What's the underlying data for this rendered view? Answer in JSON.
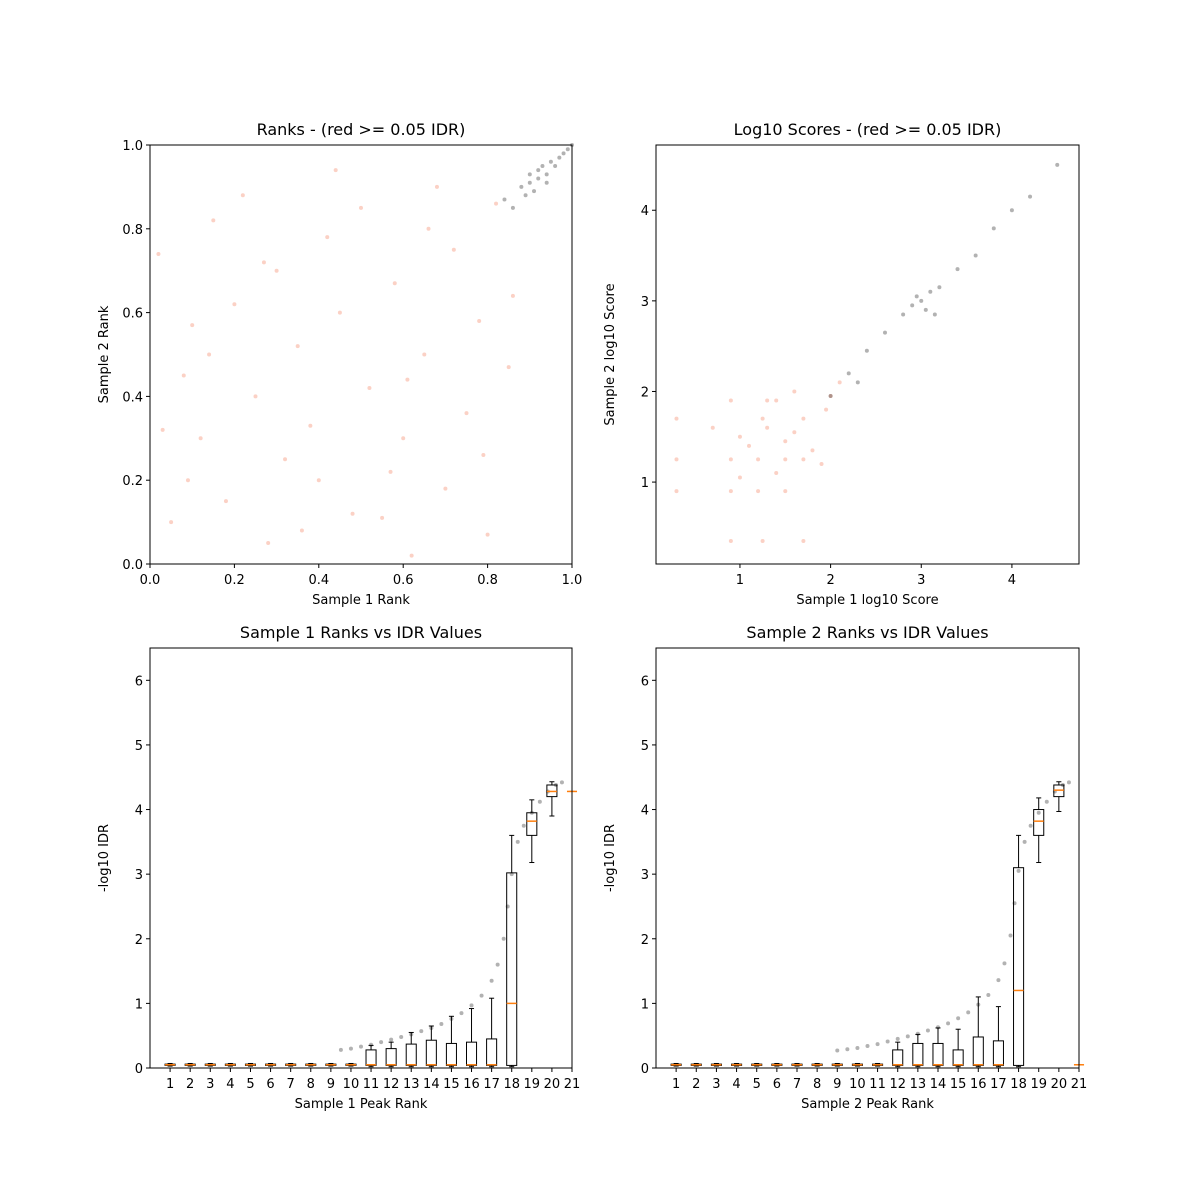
{
  "chart_data": [
    {
      "type": "scatter",
      "title": "Ranks - (red >= 0.05 IDR)",
      "xlabel": "Sample 1 Rank",
      "ylabel": "Sample 2 Rank",
      "xlim": [
        0,
        1
      ],
      "ylim": [
        0,
        1
      ],
      "xticks": [
        {
          "value": 0,
          "label": "0.0"
        },
        {
          "value": 0.2,
          "label": "0.2"
        },
        {
          "value": 0.4,
          "label": "0.4"
        },
        {
          "value": 0.6,
          "label": "0.6"
        },
        {
          "value": 0.8,
          "label": "0.8"
        },
        {
          "value": 1,
          "label": "1.0"
        }
      ],
      "yticks": [
        {
          "value": 0,
          "label": "0.0"
        },
        {
          "value": 0.2,
          "label": "0.2"
        },
        {
          "value": 0.4,
          "label": "0.4"
        },
        {
          "value": 0.6,
          "label": "0.6"
        },
        {
          "value": 0.8,
          "label": "0.8"
        },
        {
          "value": 1,
          "label": "1.0"
        }
      ],
      "series": [
        {
          "color": "#f47a5a",
          "x": [
            0.02,
            0.05,
            0.08,
            0.1,
            0.12,
            0.15,
            0.18,
            0.2,
            0.22,
            0.25,
            0.28,
            0.3,
            0.32,
            0.35,
            0.38,
            0.4,
            0.42,
            0.45,
            0.48,
            0.5,
            0.52,
            0.55,
            0.58,
            0.6,
            0.62,
            0.65,
            0.68,
            0.7,
            0.72,
            0.75,
            0.78,
            0.8,
            0.82,
            0.85,
            0.03,
            0.14,
            0.27,
            0.44,
            0.57,
            0.66,
            0.79,
            0.86,
            0.09,
            0.36,
            0.61
          ],
          "values": [
            0.74,
            0.1,
            0.45,
            0.57,
            0.3,
            0.82,
            0.15,
            0.62,
            0.88,
            0.4,
            0.05,
            0.7,
            0.25,
            0.52,
            0.33,
            0.2,
            0.78,
            0.6,
            0.12,
            0.85,
            0.42,
            0.11,
            0.67,
            0.3,
            0.02,
            0.5,
            0.9,
            0.18,
            0.75,
            0.36,
            0.58,
            0.07,
            0.86,
            0.47,
            0.32,
            0.5,
            0.72,
            0.94,
            0.22,
            0.8,
            0.26,
            0.64,
            0.2,
            0.08,
            0.44
          ]
        },
        {
          "color": "#000000",
          "x": [
            0.84,
            0.86,
            0.88,
            0.89,
            0.9,
            0.91,
            0.92,
            0.93,
            0.94,
            0.95,
            0.96,
            0.97,
            0.98,
            0.99,
            1.0,
            0.9,
            0.92,
            0.94
          ],
          "values": [
            0.87,
            0.85,
            0.9,
            0.88,
            0.93,
            0.89,
            0.92,
            0.95,
            0.91,
            0.96,
            0.95,
            0.97,
            0.98,
            0.99,
            1.0,
            0.91,
            0.94,
            0.93
          ]
        }
      ]
    },
    {
      "type": "scatter",
      "title": "Log10 Scores - (red >= 0.05 IDR)",
      "xlabel": "Sample 1 log10 Score",
      "ylabel": "Sample 2 log10 Score",
      "xlim": [
        0.074,
        4.74
      ],
      "ylim": [
        0.096,
        4.72
      ],
      "xticks": [
        1,
        2,
        3,
        4
      ],
      "yticks": [
        1,
        2,
        3,
        4
      ],
      "series": [
        {
          "color": "#f47a5a",
          "x": [
            0.3,
            0.3,
            0.3,
            0.9,
            0.9,
            0.9,
            1.0,
            1.1,
            1.2,
            1.25,
            1.25,
            1.3,
            1.4,
            1.5,
            1.5,
            1.6,
            1.7,
            1.7,
            1.8,
            1.9,
            1.95,
            2.0,
            2.1,
            1.2,
            1.5,
            0.9,
            1.4,
            1.7,
            1.0,
            1.3,
            0.7,
            1.6
          ],
          "values": [
            1.25,
            1.7,
            0.9,
            1.9,
            1.25,
            0.9,
            1.5,
            1.4,
            1.25,
            1.7,
            0.35,
            1.6,
            1.9,
            1.25,
            0.9,
            1.55,
            1.7,
            0.35,
            1.35,
            1.2,
            1.8,
            1.95,
            2.1,
            0.9,
            1.45,
            0.35,
            1.1,
            1.25,
            1.05,
            1.9,
            1.6,
            2.0
          ]
        },
        {
          "color": "#000000",
          "x": [
            2.0,
            2.2,
            2.4,
            2.6,
            2.8,
            2.9,
            3.0,
            3.05,
            3.1,
            3.2,
            3.4,
            3.6,
            3.8,
            4.0,
            4.2,
            4.5,
            2.3,
            2.95,
            3.15
          ],
          "values": [
            1.95,
            2.2,
            2.45,
            2.65,
            2.85,
            2.95,
            3.0,
            2.9,
            3.1,
            3.15,
            3.35,
            3.5,
            3.8,
            4.0,
            4.15,
            4.5,
            2.1,
            3.05,
            2.85
          ]
        }
      ]
    },
    {
      "type": "box",
      "title": "Sample 1 Ranks vs IDR Values",
      "xlabel": "Sample 1 Peak Rank",
      "ylabel": "-log10 IDR",
      "xlim": [
        0,
        21
      ],
      "ylim": [
        0,
        6.5
      ],
      "xticks": [
        1,
        2,
        3,
        4,
        5,
        6,
        7,
        8,
        9,
        10,
        11,
        12,
        13,
        14,
        15,
        16,
        17,
        18,
        19,
        20,
        21
      ],
      "yticks": [
        0,
        1,
        2,
        3,
        4,
        5,
        6
      ],
      "positions": [
        1,
        2,
        3,
        4,
        5,
        6,
        7,
        8,
        9,
        10,
        11,
        12,
        13,
        14,
        15,
        16,
        17,
        18,
        19,
        20,
        21
      ],
      "boxes": [
        {
          "low": 0.03,
          "q1": 0.04,
          "median": 0.05,
          "q3": 0.06,
          "high": 0.07
        },
        {
          "low": 0.03,
          "q1": 0.04,
          "median": 0.05,
          "q3": 0.06,
          "high": 0.07
        },
        {
          "low": 0.03,
          "q1": 0.04,
          "median": 0.05,
          "q3": 0.06,
          "high": 0.07
        },
        {
          "low": 0.03,
          "q1": 0.04,
          "median": 0.05,
          "q3": 0.06,
          "high": 0.07
        },
        {
          "low": 0.03,
          "q1": 0.04,
          "median": 0.05,
          "q3": 0.06,
          "high": 0.07
        },
        {
          "low": 0.03,
          "q1": 0.04,
          "median": 0.05,
          "q3": 0.06,
          "high": 0.07
        },
        {
          "low": 0.03,
          "q1": 0.04,
          "median": 0.05,
          "q3": 0.06,
          "high": 0.07
        },
        {
          "low": 0.03,
          "q1": 0.04,
          "median": 0.05,
          "q3": 0.06,
          "high": 0.07
        },
        {
          "low": 0.03,
          "q1": 0.04,
          "median": 0.05,
          "q3": 0.06,
          "high": 0.07
        },
        {
          "low": 0.03,
          "q1": 0.04,
          "median": 0.05,
          "q3": 0.06,
          "high": 0.07
        },
        {
          "low": 0.02,
          "q1": 0.04,
          "median": 0.05,
          "q3": 0.28,
          "high": 0.35
        },
        {
          "low": 0.02,
          "q1": 0.04,
          "median": 0.05,
          "q3": 0.3,
          "high": 0.4
        },
        {
          "low": 0.02,
          "q1": 0.04,
          "median": 0.05,
          "q3": 0.37,
          "high": 0.55
        },
        {
          "low": 0.02,
          "q1": 0.04,
          "median": 0.05,
          "q3": 0.43,
          "high": 0.65
        },
        {
          "low": 0.02,
          "q1": 0.04,
          "median": 0.05,
          "q3": 0.38,
          "high": 0.8
        },
        {
          "low": 0.02,
          "q1": 0.04,
          "median": 0.05,
          "q3": 0.4,
          "high": 0.92
        },
        {
          "low": 0.02,
          "q1": 0.04,
          "median": 0.05,
          "q3": 0.45,
          "high": 1.08
        },
        {
          "low": 0.02,
          "q1": 0.04,
          "median": 1.0,
          "q3": 3.02,
          "high": 3.6
        },
        {
          "low": 3.18,
          "q1": 3.6,
          "median": 3.82,
          "q3": 3.95,
          "high": 4.15
        },
        {
          "low": 3.9,
          "q1": 4.2,
          "median": 4.28,
          "q3": 4.38,
          "high": 4.43
        },
        {
          "low": 4.28,
          "q1": 4.28,
          "median": 4.28,
          "q3": 4.28,
          "high": 4.28
        }
      ],
      "series": [
        {
          "color": "#000000",
          "x": [
            9.5,
            10,
            10.5,
            11,
            11.5,
            12,
            12.5,
            13,
            13.5,
            14,
            14.5,
            15,
            15.5,
            16,
            16.5,
            17,
            17.3,
            17.6,
            17.8,
            18,
            18.3,
            18.6,
            19,
            19.4,
            19.8,
            20.2,
            20.5
          ],
          "values": [
            0.28,
            0.3,
            0.33,
            0.36,
            0.4,
            0.44,
            0.48,
            0.52,
            0.57,
            0.62,
            0.68,
            0.76,
            0.85,
            0.97,
            1.12,
            1.35,
            1.6,
            2.0,
            2.5,
            3.0,
            3.5,
            3.75,
            3.95,
            4.12,
            4.28,
            4.38,
            4.42
          ]
        }
      ]
    },
    {
      "type": "box",
      "title": "Sample 2 Ranks vs IDR Values",
      "xlabel": "Sample 2 Peak Rank",
      "ylabel": "-log10 IDR",
      "xlim": [
        0,
        21
      ],
      "ylim": [
        0,
        6.5
      ],
      "xticks": [
        1,
        2,
        3,
        4,
        5,
        6,
        7,
        8,
        9,
        10,
        11,
        12,
        13,
        14,
        15,
        16,
        17,
        18,
        19,
        20,
        21
      ],
      "yticks": [
        0,
        1,
        2,
        3,
        4,
        5,
        6
      ],
      "positions": [
        1,
        2,
        3,
        4,
        5,
        6,
        7,
        8,
        9,
        10,
        11,
        12,
        13,
        14,
        15,
        16,
        17,
        18,
        19,
        20,
        21
      ],
      "boxes": [
        {
          "low": 0.03,
          "q1": 0.04,
          "median": 0.05,
          "q3": 0.06,
          "high": 0.07
        },
        {
          "low": 0.03,
          "q1": 0.04,
          "median": 0.05,
          "q3": 0.06,
          "high": 0.07
        },
        {
          "low": 0.03,
          "q1": 0.04,
          "median": 0.05,
          "q3": 0.06,
          "high": 0.07
        },
        {
          "low": 0.03,
          "q1": 0.04,
          "median": 0.05,
          "q3": 0.06,
          "high": 0.07
        },
        {
          "low": 0.03,
          "q1": 0.04,
          "median": 0.05,
          "q3": 0.06,
          "high": 0.07
        },
        {
          "low": 0.03,
          "q1": 0.04,
          "median": 0.05,
          "q3": 0.06,
          "high": 0.07
        },
        {
          "low": 0.03,
          "q1": 0.04,
          "median": 0.05,
          "q3": 0.06,
          "high": 0.07
        },
        {
          "low": 0.03,
          "q1": 0.04,
          "median": 0.05,
          "q3": 0.06,
          "high": 0.07
        },
        {
          "low": 0.03,
          "q1": 0.04,
          "median": 0.05,
          "q3": 0.06,
          "high": 0.07
        },
        {
          "low": 0.03,
          "q1": 0.04,
          "median": 0.05,
          "q3": 0.06,
          "high": 0.07
        },
        {
          "low": 0.03,
          "q1": 0.04,
          "median": 0.05,
          "q3": 0.06,
          "high": 0.07
        },
        {
          "low": 0.02,
          "q1": 0.04,
          "median": 0.05,
          "q3": 0.28,
          "high": 0.4
        },
        {
          "low": 0.02,
          "q1": 0.04,
          "median": 0.05,
          "q3": 0.38,
          "high": 0.52
        },
        {
          "low": 0.02,
          "q1": 0.04,
          "median": 0.05,
          "q3": 0.38,
          "high": 0.62
        },
        {
          "low": 0.02,
          "q1": 0.04,
          "median": 0.05,
          "q3": 0.28,
          "high": 0.6
        },
        {
          "low": 0.02,
          "q1": 0.04,
          "median": 0.05,
          "q3": 0.48,
          "high": 1.1
        },
        {
          "low": 0.02,
          "q1": 0.04,
          "median": 0.05,
          "q3": 0.42,
          "high": 0.95
        },
        {
          "low": 0.02,
          "q1": 0.04,
          "median": 1.2,
          "q3": 3.1,
          "high": 3.6
        },
        {
          "low": 3.18,
          "q1": 3.6,
          "median": 3.82,
          "q3": 4.0,
          "high": 4.18
        },
        {
          "low": 3.97,
          "q1": 4.2,
          "median": 4.3,
          "q3": 4.38,
          "high": 4.43
        },
        {
          "low": 0.05,
          "q1": 0.05,
          "median": 0.05,
          "q3": 0.05,
          "high": 0.05
        }
      ],
      "series": [
        {
          "color": "#000000",
          "x": [
            9,
            9.5,
            10,
            10.5,
            11,
            11.5,
            12,
            12.5,
            13,
            13.5,
            14,
            14.5,
            15,
            15.5,
            16,
            16.5,
            17,
            17.3,
            17.6,
            17.8,
            18,
            18.3,
            18.6,
            19,
            19.4,
            19.8,
            20.2,
            20.5
          ],
          "values": [
            0.27,
            0.29,
            0.31,
            0.34,
            0.37,
            0.41,
            0.45,
            0.49,
            0.53,
            0.58,
            0.63,
            0.69,
            0.77,
            0.86,
            0.98,
            1.13,
            1.36,
            1.62,
            2.05,
            2.55,
            3.05,
            3.5,
            3.75,
            3.95,
            4.12,
            4.28,
            4.38,
            4.42
          ]
        }
      ]
    }
  ]
}
